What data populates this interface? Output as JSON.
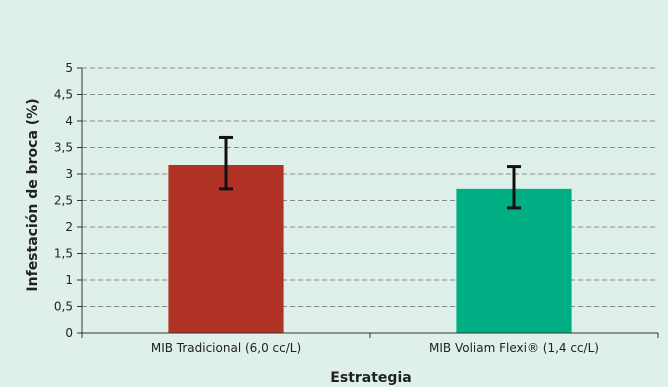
{
  "chart_data": {
    "type": "bar",
    "title": "",
    "xlabel": "Estrategia",
    "ylabel": "Infestación de broca (%)",
    "ylim": [
      0,
      5
    ],
    "yticks": [
      {
        "value": 0,
        "label": "0"
      },
      {
        "value": 0.5,
        "label": "0,5"
      },
      {
        "value": 1,
        "label": "1"
      },
      {
        "value": 1.5,
        "label": "1,5"
      },
      {
        "value": 2,
        "label": "2"
      },
      {
        "value": 2.5,
        "label": "2,5"
      },
      {
        "value": 3,
        "label": "3"
      },
      {
        "value": 3.5,
        "label": "3,5"
      },
      {
        "value": 4,
        "label": "4"
      },
      {
        "value": 4.5,
        "label": "4,5"
      },
      {
        "value": 5,
        "label": "5"
      }
    ],
    "grid": "horizontal-dashed",
    "legend": "none",
    "categories": [
      "MIB Tradicional (6,0 cc/L)",
      "MIB Voliam Flexi® (1,4 cc/L)"
    ],
    "values": [
      3.17,
      2.72
    ],
    "error_bars": [
      {
        "low": 2.72,
        "high": 3.69
      },
      {
        "low": 2.36,
        "high": 3.14
      }
    ],
    "colors": {
      "background": "#dff0ea",
      "bars": [
        "#b03224",
        "#00b084"
      ],
      "grid": "#8a8a8a",
      "axis": "#333333",
      "error": "#111111"
    }
  }
}
